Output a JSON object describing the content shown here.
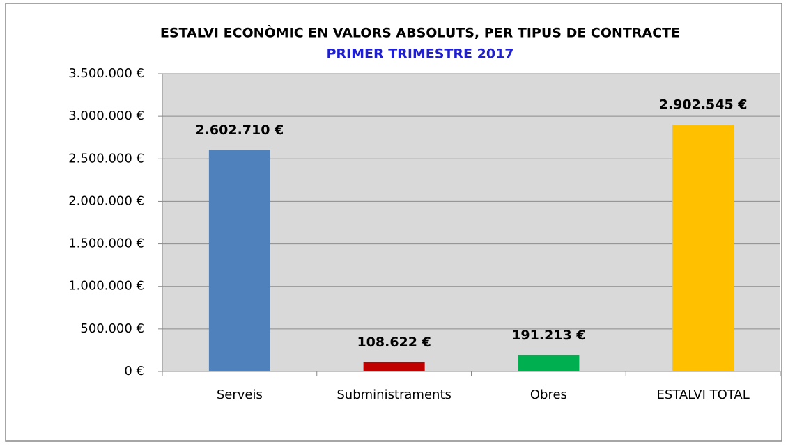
{
  "chart_data": {
    "type": "bar",
    "title": "ESTALVI ECONÒMIC EN VALORS ABSOLUTS, PER TIPUS DE CONTRACTE",
    "subtitle": "PRIMER TRIMESTRE 2017",
    "categories": [
      "Serveis",
      "Subministraments",
      "Obres",
      "ESTALVI TOTAL"
    ],
    "values": [
      2602710,
      108622,
      191213,
      2902545
    ],
    "value_labels": [
      "2.602.710 €",
      "108.622 €",
      "191.213 €",
      "2.902.545 €"
    ],
    "colors": [
      "#4f81bd",
      "#c00000",
      "#00b050",
      "#ffc000"
    ],
    "ylim": [
      0,
      3500000
    ],
    "yticks": [
      {
        "value": 0,
        "label": "0 €"
      },
      {
        "value": 500000,
        "label": "500.000 €"
      },
      {
        "value": 1000000,
        "label": "1.000.000 €"
      },
      {
        "value": 1500000,
        "label": "1.500.000 €"
      },
      {
        "value": 2000000,
        "label": "2.000.000 €"
      },
      {
        "value": 2500000,
        "label": "2.500.000 €"
      },
      {
        "value": 3000000,
        "label": "3.000.000 €"
      },
      {
        "value": 3500000,
        "label": "3.500.000 €"
      }
    ],
    "grid": true
  }
}
